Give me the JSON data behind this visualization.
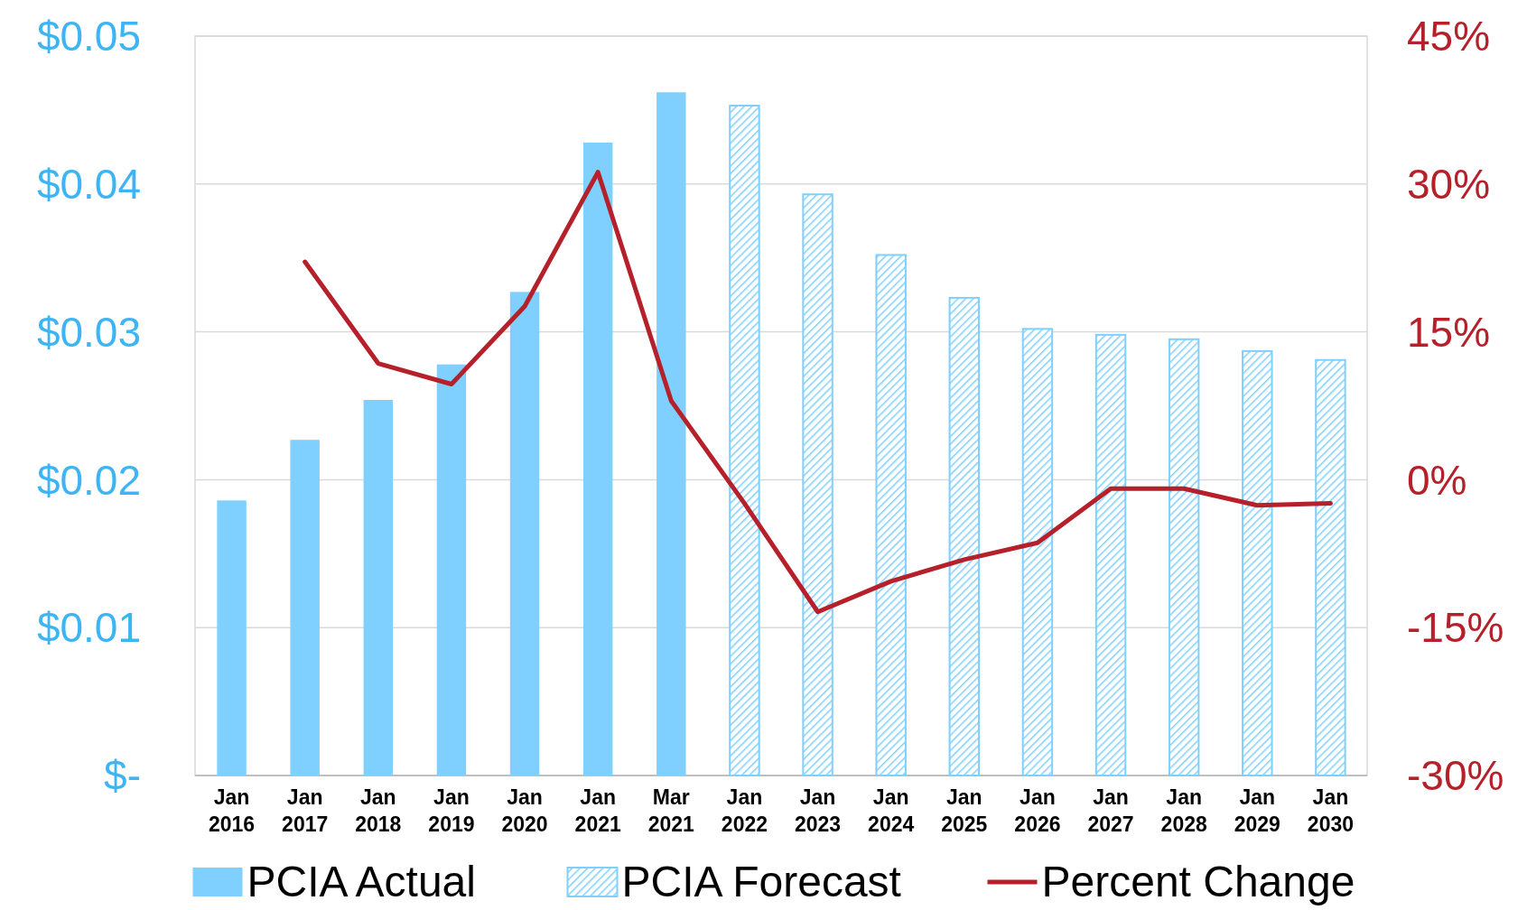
{
  "chart_data": {
    "type": "bar",
    "categories": [
      "Jan 2016",
      "Jan 2017",
      "Jan 2018",
      "Jan 2019",
      "Jan 2020",
      "Jan 2021",
      "Mar 2021",
      "Jan 2022",
      "Jan 2023",
      "Jan 2024",
      "Jan 2025",
      "Jan 2026",
      "Jan 2027",
      "Jan 2028",
      "Jan 2029",
      "Jan 2030"
    ],
    "series": [
      {
        "name": "PCIA Actual",
        "color": "#80d0ff",
        "values": [
          0.0186,
          0.0227,
          0.0254,
          0.0278,
          0.0327,
          0.0428,
          0.0462,
          null,
          null,
          null,
          null,
          null,
          null,
          null,
          null,
          null
        ]
      },
      {
        "name": "PCIA Forecast",
        "color": "#80d0ff",
        "values": [
          null,
          null,
          null,
          null,
          null,
          null,
          null,
          0.0453,
          0.0393,
          0.0352,
          0.0323,
          0.0302,
          0.0298,
          0.0295,
          0.0287,
          0.0281
        ]
      },
      {
        "name": "Percent Change",
        "type": "line",
        "axis": "y2",
        "color": "#b5202a",
        "values": [
          null,
          22.1,
          11.8,
          9.7,
          17.6,
          31.2,
          8.0,
          -2.4,
          -13.4,
          -10.3,
          -8.1,
          -6.4,
          -0.9,
          -0.9,
          -2.6,
          -2.4
        ]
      }
    ],
    "ylim": [
      0,
      0.05
    ],
    "yticks": [
      {
        "value": 0,
        "label": "$-"
      },
      {
        "value": 0.01,
        "label": "$0.01"
      },
      {
        "value": 0.02,
        "label": "$0.02"
      },
      {
        "value": 0.03,
        "label": "$0.03"
      },
      {
        "value": 0.04,
        "label": "$0.04"
      },
      {
        "value": 0.05,
        "label": "$0.05"
      }
    ],
    "y2lim": [
      -30,
      45
    ],
    "y2ticks": [
      {
        "value": -30,
        "label": "-30%"
      },
      {
        "value": -15,
        "label": "-15%"
      },
      {
        "value": 0,
        "label": "0%"
      },
      {
        "value": 15,
        "label": "15%"
      },
      {
        "value": 30,
        "label": "30%"
      },
      {
        "value": 45,
        "label": "45%"
      }
    ],
    "grid": "y",
    "legend": "bottom"
  }
}
